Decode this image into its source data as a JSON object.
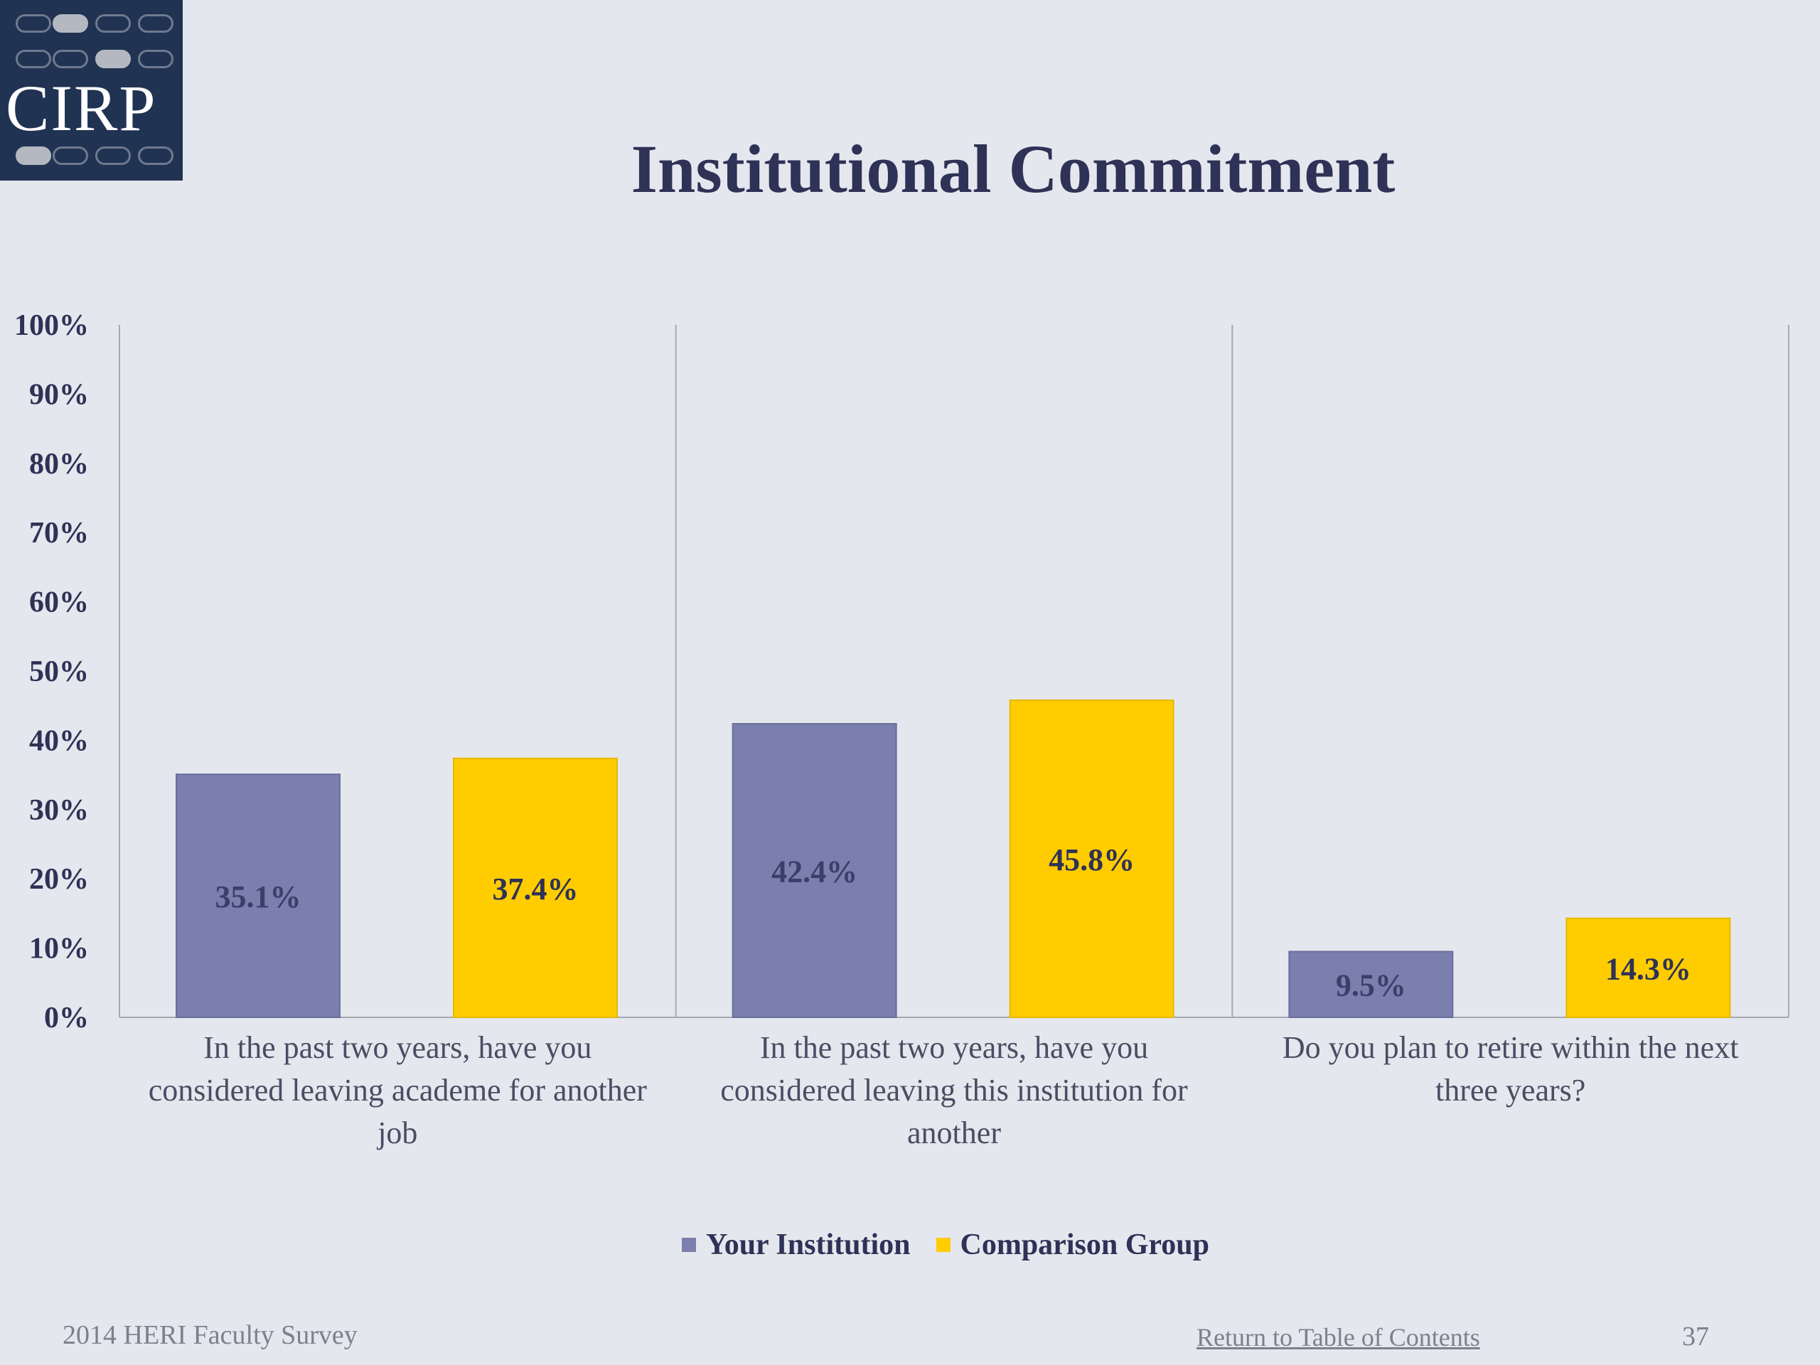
{
  "logo": {
    "text": "CIRP"
  },
  "colors": {
    "background": "#e5e7ee",
    "text": "#2e3256",
    "series_1": "#7a7fae",
    "series_2": "#ffcc00",
    "logo_bg": "#213352"
  },
  "chart_data": {
    "type": "bar",
    "title": "Institutional Commitment",
    "categories": [
      [
        "In the past two years, have you",
        "considered leaving academe for another",
        "job"
      ],
      [
        "In the past two years, have you",
        "considered leaving this institution for",
        "another"
      ],
      [
        "Do you plan to retire within the next",
        "three years?"
      ]
    ],
    "series": [
      {
        "name": "Your Institution",
        "color": "#7a7fae",
        "values": [
          35.1,
          42.4,
          9.5
        ],
        "labels": [
          "35.1%",
          "42.4%",
          "9.5%"
        ]
      },
      {
        "name": "Comparison Group",
        "color": "#ffcc00",
        "values": [
          37.4,
          45.8,
          14.3
        ],
        "labels": [
          "37.4%",
          "45.8%",
          "14.3%"
        ]
      }
    ],
    "y_ticks": [
      "0%",
      "10%",
      "20%",
      "30%",
      "40%",
      "50%",
      "60%",
      "70%",
      "80%",
      "90%",
      "100%"
    ],
    "ylim": [
      0,
      100
    ],
    "grid": false,
    "legend_position": "bottom"
  },
  "footer": {
    "source": "2014 HERI Faculty Survey",
    "link": "Return to Table of Contents",
    "page": "37"
  }
}
